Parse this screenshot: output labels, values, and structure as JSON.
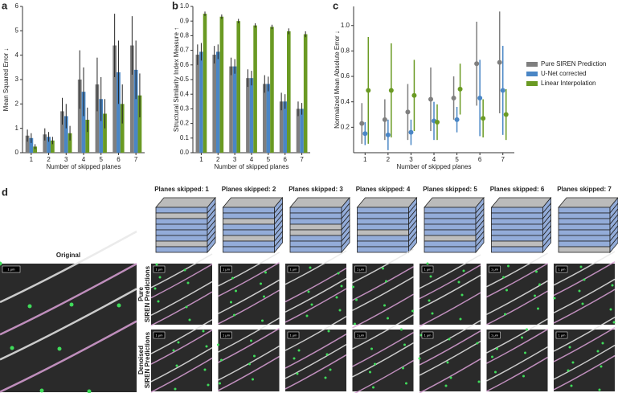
{
  "chart_data": [
    {
      "type": "bar",
      "panel": "a",
      "y_label": "Mean Squared Error ↓",
      "x_label": "Number of skipped planes",
      "categories": [
        "1",
        "2",
        "3",
        "4",
        "5",
        "6",
        "7"
      ],
      "ylim": [
        0,
        6
      ],
      "yticks": [
        0,
        1,
        2,
        3,
        4,
        5,
        6
      ],
      "series": [
        {
          "name": "Pure SIREN Prediction",
          "color": "#7f7f7f",
          "values": [
            0.7,
            0.75,
            1.7,
            3.0,
            2.8,
            4.4,
            4.4
          ],
          "errors": [
            0.25,
            0.25,
            0.55,
            1.2,
            1.1,
            1.3,
            1.2
          ]
        },
        {
          "name": "U-Net corrected",
          "color": "#4a86c5",
          "values": [
            0.6,
            0.65,
            1.5,
            2.5,
            2.2,
            3.3,
            3.4
          ],
          "errors": [
            0.2,
            0.2,
            0.5,
            1.0,
            0.9,
            1.3,
            1.2
          ]
        },
        {
          "name": "Linear Interpolation",
          "color": "#6a9a23",
          "values": [
            0.25,
            0.5,
            0.8,
            1.35,
            1.6,
            2.0,
            2.35
          ],
          "errors": [
            0.1,
            0.15,
            0.3,
            0.5,
            0.6,
            0.8,
            0.9
          ]
        }
      ]
    },
    {
      "type": "bar",
      "panel": "b",
      "y_label": "Structural Similarity Index Measure ↑",
      "x_label": "Number of skipped planes",
      "categories": [
        "1",
        "2",
        "3",
        "4",
        "5",
        "6",
        "7"
      ],
      "ylim": [
        0,
        1
      ],
      "yticks": [
        {
          "value": 0,
          "label": "0.0"
        },
        0.1,
        0.2,
        0.3,
        0.4,
        0.5,
        0.6,
        0.7,
        0.8,
        0.9,
        {
          "value": 1,
          "label": "1.0"
        }
      ],
      "series": [
        {
          "name": "Pure SIREN Prediction",
          "color": "#7f7f7f",
          "values": [
            0.67,
            0.67,
            0.59,
            0.51,
            0.47,
            0.35,
            0.3
          ],
          "errors": [
            0.07,
            0.06,
            0.06,
            0.06,
            0.06,
            0.06,
            0.05
          ]
        },
        {
          "name": "U-Net corrected",
          "color": "#4a86c5",
          "values": [
            0.69,
            0.69,
            0.59,
            0.51,
            0.47,
            0.35,
            0.3
          ],
          "errors": [
            0.06,
            0.05,
            0.05,
            0.05,
            0.05,
            0.05,
            0.04
          ]
        },
        {
          "name": "Linear Interpolation",
          "color": "#6a9a23",
          "values": [
            0.95,
            0.93,
            0.9,
            0.87,
            0.86,
            0.83,
            0.81
          ],
          "errors": [
            0.015,
            0.015,
            0.015,
            0.015,
            0.015,
            0.02,
            0.02
          ]
        }
      ]
    },
    {
      "type": "point",
      "panel": "c",
      "y_label": "Normalized Mean Absolute Error ↓",
      "x_label": "Number of skipped planes",
      "categories": [
        "1",
        "2",
        "3",
        "4",
        "5",
        "6",
        "7"
      ],
      "ylim": [
        0,
        1.15
      ],
      "yticks": [
        0.2,
        0.4,
        0.6,
        0.8,
        {
          "value": 1,
          "label": "1.0"
        }
      ],
      "legend": "right",
      "series": [
        {
          "name": "Pure SIREN Prediction",
          "color": "#7f7f7f",
          "values": [
            0.23,
            0.26,
            0.32,
            0.42,
            0.43,
            0.7,
            0.71
          ],
          "errors": [
            0.16,
            0.16,
            0.22,
            0.25,
            0.17,
            0.33,
            0.4
          ]
        },
        {
          "name": "U-Net corrected",
          "color": "#4a86c5",
          "values": [
            0.15,
            0.14,
            0.16,
            0.25,
            0.26,
            0.43,
            0.49
          ],
          "errors": [
            0.09,
            0.12,
            0.1,
            0.15,
            0.1,
            0.3,
            0.35
          ]
        },
        {
          "name": "Linear Interpolation",
          "color": "#6a9a23",
          "values": [
            0.49,
            0.49,
            0.45,
            0.24,
            0.5,
            0.27,
            0.3
          ],
          "errors": [
            0.42,
            0.37,
            0.28,
            0.14,
            0.2,
            0.15,
            0.2
          ]
        }
      ]
    }
  ],
  "panel_d": {
    "label": "d",
    "original_title": "Original",
    "scale_bar": "1 μm",
    "column_titles": [
      "Planes skipped: 1",
      "Planes skipped: 2",
      "Planes skipped: 3",
      "Planes skipped: 4",
      "Planes skipped: 5",
      "Planes skipped: 6",
      "Planes skipped: 7"
    ],
    "row_titles": [
      [
        "Pure",
        "SIREN Predictions"
      ],
      [
        "Denoised",
        "SIREN Predictions"
      ]
    ]
  }
}
